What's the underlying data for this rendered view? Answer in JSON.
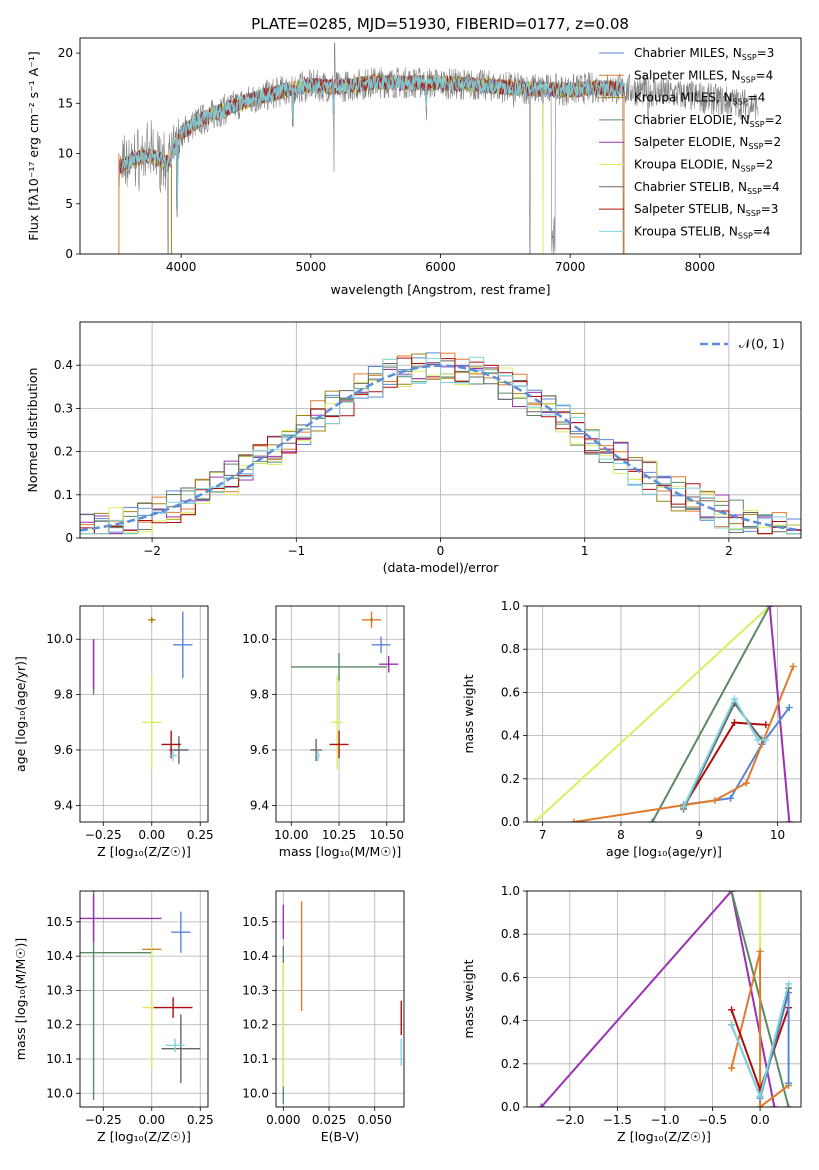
{
  "title": "PLATE=0285, MJD=51930, FIBERID=0177, z=0.08",
  "colors": {
    "chabrier_miles": "#5b86d6",
    "salpeter_miles": "#e07b2c",
    "kroupa_miles": "#a08318",
    "chabrier_elodie": "#5a8a63",
    "salpeter_elodie": "#9b30b5",
    "kroupa_elodie": "#d9ef60",
    "chabrier_stelib": "#666666",
    "salpeter_stelib": "#b00d0d",
    "kroupa_stelib": "#7fd4e0"
  },
  "legend": [
    {
      "key": "chabrier_miles",
      "label": "Chabrier MILES, N",
      "sub": "SSP",
      "suffix": "=3"
    },
    {
      "key": "salpeter_miles",
      "label": "Salpeter MILES, N",
      "sub": "SSP",
      "suffix": "=4"
    },
    {
      "key": "kroupa_miles",
      "label": "Kroupa MILES, N",
      "sub": "SSP",
      "suffix": "=4"
    },
    {
      "key": "chabrier_elodie",
      "label": "Chabrier ELODIE, N",
      "sub": "SSP",
      "suffix": "=2"
    },
    {
      "key": "salpeter_elodie",
      "label": "Salpeter ELODIE, N",
      "sub": "SSP",
      "suffix": "=2"
    },
    {
      "key": "kroupa_elodie",
      "label": "Kroupa ELODIE, N",
      "sub": "SSP",
      "suffix": "=2"
    },
    {
      "key": "chabrier_stelib",
      "label": "Chabrier STELIB, N",
      "sub": "SSP",
      "suffix": "=4"
    },
    {
      "key": "salpeter_stelib",
      "label": "Salpeter STELIB, N",
      "sub": "SSP",
      "suffix": "=3"
    },
    {
      "key": "kroupa_stelib",
      "label": "Kroupa STELIB, N",
      "sub": "SSP",
      "suffix": "=4"
    }
  ],
  "chart_data": [
    {
      "id": "spectrum",
      "type": "line",
      "xlabel": "wavelength [Angstrom, rest frame]",
      "ylabel": "Flux [fλ10⁻¹⁷ erg cm⁻² s⁻¹ A⁻¹]",
      "xlim": [
        3220,
        8780
      ],
      "ylim": [
        0,
        21.5
      ],
      "xticks": [
        4000,
        5000,
        6000,
        7000,
        8000
      ],
      "yticks": [
        0,
        5,
        10,
        15,
        20
      ],
      "continuum": [
        [
          3520,
          8.5
        ],
        [
          3640,
          9.5
        ],
        [
          3780,
          9.8
        ],
        [
          3900,
          9.0
        ],
        [
          4000,
          12.0
        ],
        [
          4100,
          13.0
        ],
        [
          4300,
          14.2
        ],
        [
          4500,
          15.2
        ],
        [
          4800,
          16.3
        ],
        [
          5000,
          16.8
        ],
        [
          5200,
          16.6
        ],
        [
          5500,
          17.1
        ],
        [
          6000,
          17.0
        ],
        [
          6300,
          16.8
        ],
        [
          6600,
          16.5
        ],
        [
          7000,
          16.3
        ],
        [
          7200,
          16.6
        ],
        [
          7400,
          16.4
        ],
        [
          7600,
          16.2
        ],
        [
          8000,
          15.6
        ],
        [
          8300,
          15.0
        ],
        [
          8450,
          14.8
        ]
      ],
      "dips": [
        [
          3934,
          10.0
        ],
        [
          3969,
          3.0
        ],
        [
          4861,
          12.0
        ],
        [
          5175,
          12.5
        ],
        [
          5890,
          13.2
        ],
        [
          6563,
          14.0
        ],
        [
          6870,
          0
        ],
        [
          7600,
          12.5
        ]
      ],
      "spikes": [
        [
          5180,
          8.2
        ],
        [
          6690,
          0
        ],
        [
          6790,
          0
        ],
        [
          3900,
          0
        ],
        [
          7410,
          0
        ]
      ],
      "grid": false
    },
    {
      "id": "residual_hist",
      "type": "histogram",
      "xlabel": "(data-model)/error",
      "ylabel": "Normed distribution",
      "xlim": [
        -2.5,
        2.5
      ],
      "ylim": [
        0,
        0.5
      ],
      "xticks": [
        -2,
        -1,
        0,
        1,
        2
      ],
      "yticks": [
        0.0,
        0.1,
        0.2,
        0.3,
        0.4
      ],
      "bin_edges_start": -2.5,
      "bin_width": 0.1,
      "gaussian_label": "𝒩(0, 1)",
      "series_names_from_legend": true,
      "grid": true
    },
    {
      "id": "age_vs_Z",
      "type": "errorbar",
      "xlabel": "Z [log₁₀(Z/Z☉)]",
      "ylabel": "age  [log₁₀(age/yr)]",
      "xlim": [
        -0.37,
        0.29
      ],
      "ylim": [
        9.34,
        10.12
      ],
      "xticks": [
        -0.25,
        0.0,
        0.25
      ],
      "xticklabels": [
        "−0.25",
        "0.00",
        "0.25"
      ],
      "yticks": [
        9.4,
        9.6,
        9.8,
        10.0
      ],
      "yticklabels": [
        "9.4",
        "9.6",
        "9.8",
        "10.0"
      ],
      "points": [
        {
          "c": "chabrier_miles",
          "x": 0.16,
          "y": 9.98,
          "xe": 0.05,
          "ye": 0.12
        },
        {
          "c": "salpeter_miles",
          "x": 0.0,
          "y": 10.07,
          "xe": 0.02,
          "ye": 0.01
        },
        {
          "c": "kroupa_miles",
          "x": 0.0,
          "y": 10.07,
          "xe": 0.01,
          "ye": 0.01
        },
        {
          "c": "chabrier_elodie",
          "x": -0.3,
          "y": 9.9,
          "xe": 0.0,
          "ye": 0.1
        },
        {
          "c": "salpeter_elodie",
          "x": -0.3,
          "y": 9.91,
          "xe": 0.0,
          "ye": 0.09
        },
        {
          "c": "kroupa_elodie",
          "x": 0.0,
          "y": 9.7,
          "xe": 0.05,
          "ye": 0.17
        },
        {
          "c": "chabrier_stelib",
          "x": 0.14,
          "y": 9.6,
          "xe": 0.05,
          "ye": 0.05
        },
        {
          "c": "salpeter_stelib",
          "x": 0.1,
          "y": 9.62,
          "xe": 0.05,
          "ye": 0.05
        },
        {
          "c": "kroupa_stelib",
          "x": 0.11,
          "y": 9.58,
          "xe": 0.02,
          "ye": 0.02
        }
      ]
    },
    {
      "id": "age_vs_mass",
      "type": "errorbar",
      "xlabel": "mass [log₁₀(M/M☉)]",
      "ylabel": "",
      "xlim": [
        9.92,
        10.59
      ],
      "ylim": [
        9.34,
        10.12
      ],
      "xticks": [
        10.0,
        10.25,
        10.5
      ],
      "xticklabels": [
        "10.00",
        "10.25",
        "10.50"
      ],
      "yticks": [
        9.4,
        9.6,
        9.8,
        10.0
      ],
      "yticklabels": [
        "9.4",
        "9.6",
        "9.8",
        "10.0"
      ],
      "points": [
        {
          "c": "chabrier_miles",
          "x": 10.47,
          "y": 9.98,
          "xe": 0.05,
          "ye": 0.03
        },
        {
          "c": "salpeter_miles",
          "x": 10.42,
          "y": 10.07,
          "xe": 0.05,
          "ye": 0.03
        },
        {
          "c": "kroupa_miles",
          "x": 10.42,
          "y": 10.07,
          "xe": 0.01,
          "ye": 0.01
        },
        {
          "c": "chabrier_elodie",
          "x": 10.25,
          "y": 9.9,
          "xe": 0.25,
          "ye": 0.05
        },
        {
          "c": "salpeter_elodie",
          "x": 10.51,
          "y": 9.91,
          "xe": 0.05,
          "ye": 0.03
        },
        {
          "c": "kroupa_elodie",
          "x": 10.24,
          "y": 9.7,
          "xe": 0.03,
          "ye": 0.17
        },
        {
          "c": "chabrier_stelib",
          "x": 10.13,
          "y": 9.6,
          "xe": 0.03,
          "ye": 0.04
        },
        {
          "c": "salpeter_stelib",
          "x": 10.25,
          "y": 9.62,
          "xe": 0.05,
          "ye": 0.05
        },
        {
          "c": "kroupa_stelib",
          "x": 10.14,
          "y": 9.58,
          "xe": 0.01,
          "ye": 0.02
        }
      ]
    },
    {
      "id": "weights_vs_age",
      "type": "line",
      "xlabel": "age  [log₁₀(age/yr)]",
      "ylabel": "mass weight",
      "xlim": [
        6.8,
        10.3
      ],
      "ylim": [
        0,
        1
      ],
      "xticks": [
        7,
        8,
        9,
        10
      ],
      "xticklabels": [
        "7",
        "8",
        "9",
        "10"
      ],
      "yticks": [
        0,
        0.2,
        0.4,
        0.6,
        0.8,
        1.0
      ],
      "yticklabels": [
        "0.0",
        "0.2",
        "0.4",
        "0.6",
        "0.8",
        "1.0"
      ],
      "series": [
        {
          "c": "kroupa_elodie",
          "x": [
            6.9,
            9.9
          ],
          "y": [
            0.0,
            1.0
          ]
        },
        {
          "c": "chabrier_elodie",
          "x": [
            8.4,
            9.9
          ],
          "y": [
            0.0,
            1.0
          ]
        },
        {
          "c": "salpeter_elodie",
          "x": [
            9.9,
            10.15
          ],
          "y": [
            1.0,
            0.0
          ]
        },
        {
          "c": "chabrier_miles",
          "x": [
            8.8,
            9.4,
            9.8,
            10.15
          ],
          "y": [
            0.08,
            0.11,
            0.36,
            0.53
          ]
        },
        {
          "c": "salpeter_miles",
          "x": [
            7.4,
            9.2,
            9.6,
            10.2
          ],
          "y": [
            0.0,
            0.1,
            0.18,
            0.72
          ]
        },
        {
          "c": "salpeter_stelib",
          "x": [
            8.8,
            9.45,
            9.85
          ],
          "y": [
            0.07,
            0.46,
            0.45
          ]
        },
        {
          "c": "chabrier_stelib",
          "x": [
            8.8,
            9.45,
            9.8
          ],
          "y": [
            0.06,
            0.55,
            0.38
          ]
        },
        {
          "c": "kroupa_stelib",
          "x": [
            8.8,
            9.45,
            9.75,
            9.85
          ],
          "y": [
            0.07,
            0.57,
            0.38,
            0.38
          ]
        }
      ]
    },
    {
      "id": "mass_vs_Z",
      "type": "errorbar",
      "xlabel": "Z [log₁₀(Z/Z☉)]",
      "ylabel": "mass [log₁₀(M/M☉)]",
      "xlim": [
        -0.37,
        0.29
      ],
      "ylim": [
        9.96,
        10.59
      ],
      "xticks": [
        -0.25,
        0.0,
        0.25
      ],
      "xticklabels": [
        "−0.25",
        "0.00",
        "0.25"
      ],
      "yticks": [
        10.0,
        10.1,
        10.2,
        10.3,
        10.4,
        10.5
      ],
      "yticklabels": [
        "10.0",
        "10.1",
        "10.2",
        "10.3",
        "10.4",
        "10.5"
      ],
      "points": [
        {
          "c": "chabrier_miles",
          "x": 0.15,
          "y": 10.47,
          "xe": 0.05,
          "ye": 0.06
        },
        {
          "c": "salpeter_miles",
          "x": 0.0,
          "y": 10.42,
          "xe": 0.05,
          "ye": 0.01
        },
        {
          "c": "kroupa_miles",
          "x": 0.0,
          "y": 10.42,
          "xe": 0.01,
          "ye": 0.01
        },
        {
          "c": "chabrier_elodie",
          "x": -0.3,
          "y": 10.41,
          "xe": 0.3,
          "ye": 0.43
        },
        {
          "c": "salpeter_elodie",
          "x": -0.3,
          "y": 10.51,
          "xe": 0.35,
          "ye": 0.07
        },
        {
          "c": "kroupa_elodie",
          "x": 0.0,
          "y": 10.25,
          "xe": 0.05,
          "ye": 0.18
        },
        {
          "c": "chabrier_stelib",
          "x": 0.15,
          "y": 10.13,
          "xe": 0.1,
          "ye": 0.1
        },
        {
          "c": "salpeter_stelib",
          "x": 0.11,
          "y": 10.25,
          "xe": 0.1,
          "ye": 0.03
        },
        {
          "c": "kroupa_stelib",
          "x": 0.12,
          "y": 10.14,
          "xe": 0.05,
          "ye": 0.02
        }
      ]
    },
    {
      "id": "mass_vs_ebv",
      "type": "errorbar",
      "xlabel": "E(B-V)",
      "ylabel": "",
      "xlim": [
        -0.004,
        0.066
      ],
      "ylim": [
        9.96,
        10.59
      ],
      "xticks": [
        0,
        0.025,
        0.05
      ],
      "xticklabels": [
        "0.000",
        "0.025",
        "0.050"
      ],
      "yticks": [
        10.0,
        10.1,
        10.2,
        10.3,
        10.4,
        10.5
      ],
      "yticklabels": [
        "10.0",
        "10.1",
        "10.2",
        "10.3",
        "10.4",
        "10.5"
      ],
      "points": [
        {
          "c": "chabrier_elodie",
          "x": 0.0,
          "y": 10.2,
          "xe": 0.0,
          "ye": 0.23
        },
        {
          "c": "kroupa_elodie",
          "x": 0.0,
          "y": 10.2,
          "xe": 0.0,
          "ye": 0.18
        },
        {
          "c": "salpeter_elodie",
          "x": 0.0,
          "y": 10.5,
          "xe": 0.0,
          "ye": 0.05
        },
        {
          "c": "salpeter_miles",
          "x": 0.01,
          "y": 10.4,
          "xe": 0.0,
          "ye": 0.16
        },
        {
          "c": "salpeter_stelib",
          "x": 0.0645,
          "y": 10.22,
          "xe": 0.0,
          "ye": 0.05
        },
        {
          "c": "kroupa_stelib",
          "x": 0.0645,
          "y": 10.12,
          "xe": 0.0,
          "ye": 0.04
        }
      ]
    },
    {
      "id": "weights_vs_Z",
      "type": "line",
      "xlabel": "Z [log₁₀(Z/Z☉)]",
      "ylabel": "mass weight",
      "xlim": [
        -2.45,
        0.43
      ],
      "ylim": [
        0,
        1
      ],
      "xticks": [
        -2,
        -1.5,
        -1,
        -0.5,
        0
      ],
      "xticklabels": [
        "−2.0",
        "−1.5",
        "−1.0",
        "−0.5",
        "0.0"
      ],
      "yticks": [
        0,
        0.2,
        0.4,
        0.6,
        0.8,
        1.0
      ],
      "yticklabels": [
        "0.0",
        "0.2",
        "0.4",
        "0.6",
        "0.8",
        "1.0"
      ],
      "series": [
        {
          "c": "salpeter_elodie",
          "x": [
            -2.3,
            -0.3,
            0.15
          ],
          "y": [
            0.0,
            1.0,
            0.0
          ]
        },
        {
          "c": "chabrier_elodie",
          "x": [
            -0.3,
            0.3
          ],
          "y": [
            1.0,
            0.0
          ]
        },
        {
          "c": "kroupa_elodie",
          "x": [
            0.0,
            0.0
          ],
          "y": [
            1.0,
            0.0
          ]
        },
        {
          "c": "salpeter_miles",
          "x": [
            -0.3,
            0.0,
            0.0,
            0.3
          ],
          "y": [
            0.18,
            0.72,
            0.0,
            0.1
          ]
        },
        {
          "c": "salpeter_stelib",
          "x": [
            -0.3,
            0.0,
            0.3
          ],
          "y": [
            0.45,
            0.08,
            0.46
          ]
        },
        {
          "c": "chabrier_miles",
          "x": [
            0.0,
            0.3,
            0.3
          ],
          "y": [
            0.04,
            0.53,
            0.11
          ]
        },
        {
          "c": "chabrier_stelib",
          "x": [
            -0.3,
            0.0,
            0.3
          ],
          "y": [
            0.38,
            0.05,
            0.55
          ]
        },
        {
          "c": "kroupa_stelib",
          "x": [
            -0.3,
            0.0,
            0.3
          ],
          "y": [
            0.38,
            0.05,
            0.57
          ]
        }
      ]
    }
  ]
}
